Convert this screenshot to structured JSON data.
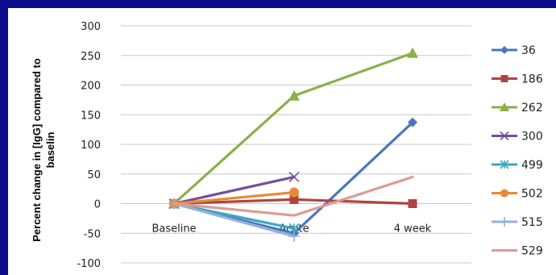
{
  "chart_data": {
    "type": "line",
    "categories": [
      "Baseline",
      "Acute",
      "4 week"
    ],
    "ylabel_line1": "Percent change in [IgG] compared to",
    "ylabel_line2": "baselin",
    "xlabel": "",
    "ylim": [
      -100,
      300
    ],
    "yticks": [
      300,
      250,
      200,
      150,
      100,
      50,
      0,
      -50,
      -100
    ],
    "grid": "horizontal",
    "legend": "right",
    "series": [
      {
        "name": "36",
        "values": [
          0,
          -50,
          137
        ],
        "color": "#4a76c0",
        "marker": "diamond"
      },
      {
        "name": "186",
        "values": [
          0,
          7,
          0
        ],
        "color": "#b0433e",
        "marker": "square"
      },
      {
        "name": "262",
        "values": [
          0,
          182,
          254
        ],
        "color": "#8ab04a",
        "marker": "triangle"
      },
      {
        "name": "300",
        "values": [
          0,
          45,
          null
        ],
        "color": "#71519b",
        "marker": "x"
      },
      {
        "name": "499",
        "values": [
          0,
          -42,
          null
        ],
        "color": "#3aa8be",
        "marker": "star"
      },
      {
        "name": "502",
        "values": [
          0,
          19,
          null
        ],
        "color": "#ea8a35",
        "marker": "circle"
      },
      {
        "name": "515",
        "values": [
          0,
          -55,
          null
        ],
        "color": "#94b1dc",
        "marker": "plus"
      },
      {
        "name": "529",
        "values": [
          0,
          -20,
          45
        ],
        "color": "#dc9a98",
        "marker": "none"
      }
    ]
  }
}
